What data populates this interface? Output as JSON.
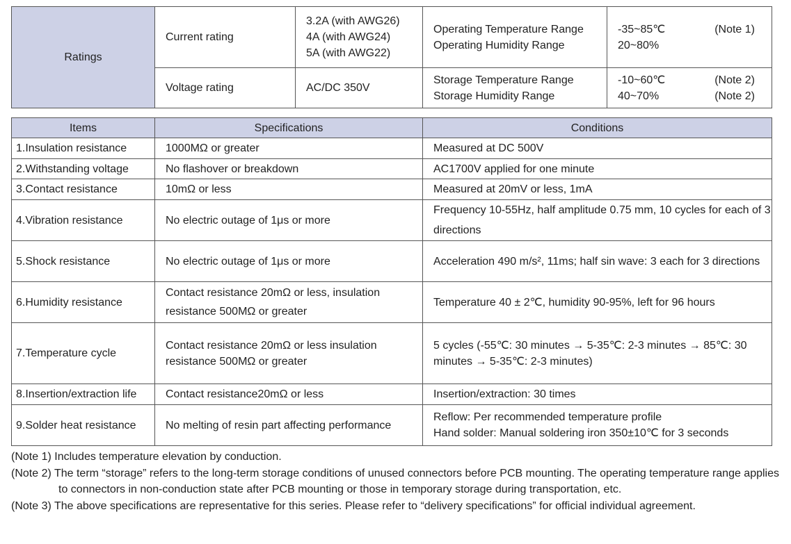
{
  "ratings": {
    "label": "Ratings",
    "current_label": "Current rating",
    "current_values": [
      "3.2A (with AWG26)",
      "4A (with AWG24)",
      "5A (with AWG22)"
    ],
    "voltage_label": "Voltage rating",
    "voltage_value": "AC/DC 350V",
    "op_labels": [
      "Operating Temperature Range",
      "Operating Humidity Range"
    ],
    "op_values": [
      "-35~85℃",
      "20~80%"
    ],
    "op_notes": [
      "(Note 1)",
      ""
    ],
    "st_labels": [
      "Storage Temperature Range",
      "Storage Humidity Range"
    ],
    "st_values": [
      "-10~60℃",
      "40~70%"
    ],
    "st_notes": [
      "(Note 2)",
      "(Note 2)"
    ]
  },
  "header_color": "#cdd1e6",
  "spec_table": {
    "headers": [
      "Items",
      "Specifications",
      "Conditions"
    ],
    "rows": [
      [
        "1.Insulation resistance",
        "1000MΩ or greater",
        "Measured at DC 500V"
      ],
      [
        "2.Withstanding voltage",
        "No flashover or breakdown",
        "AC1700V applied for one minute"
      ],
      [
        "3.Contact resistance",
        "10mΩ or less",
        "Measured at 20mV or less, 1mA"
      ],
      [
        "4.Vibration resistance",
        "No electric outage of 1μs or more",
        "Frequency 10-55Hz, half amplitude 0.75 mm, 10 cycles for each of 3 directions"
      ],
      [
        "5.Shock resistance",
        "No electric outage of 1μs or more",
        "Acceleration 490 m/s², 11ms; half sin wave: 3 each for 3 directions"
      ],
      [
        "6.Humidity resistance",
        "Contact resistance 20mΩ or less, insulation resistance 500MΩ or greater",
        "Temperature 40 ± 2℃, humidity 90-95%, left for 96 hours"
      ],
      [
        "7.Temperature cycle",
        "Contact resistance 20mΩ or less insulation resistance 500MΩ or greater",
        "5 cycles (-55℃: 30 minutes → 5-35℃: 2-3 minutes → 85℃: 30 minutes → 5-35℃: 2-3 minutes)"
      ],
      [
        "8.Insertion/extraction life",
        "Contact resistance20mΩ or less",
        "Insertion/extraction: 30 times"
      ],
      [
        "9.Solder heat resistance",
        "No melting of resin part affecting performance",
        "Reflow: Per recommended temperature profile\nHand solder: Manual soldering iron 350±10℃ for 3 seconds"
      ]
    ]
  },
  "notes": [
    "(Note 1) Includes temperature elevation by conduction.",
    "(Note 2) The term “storage” refers to the long-term storage conditions of unused connectors before PCB mounting. The operating temperature range applies to connectors in non-conduction state after PCB mounting or those in temporary storage during transportation, etc.",
    "(Note 3) The above specifications are representative for this series. Please refer to “delivery specifications” for official individual agreement."
  ]
}
